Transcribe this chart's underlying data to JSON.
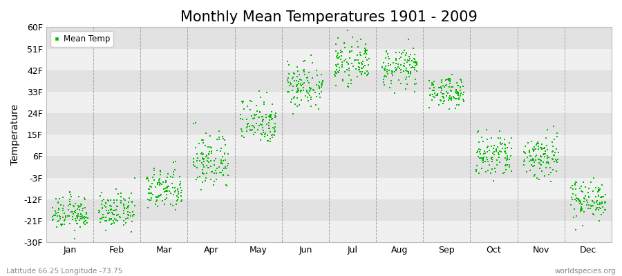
{
  "title": "Monthly Mean Temperatures 1901 - 2009",
  "ylabel": "Temperature",
  "legend_label": "Mean Temp",
  "subtitle_left": "Latitude 66.25 Longitude -73.75",
  "subtitle_right": "worldspecies.org",
  "ytick_labels": [
    "60F",
    "51F",
    "42F",
    "33F",
    "24F",
    "15F",
    "6F",
    "-3F",
    "-12F",
    "-21F",
    "-30F"
  ],
  "ytick_values": [
    60,
    51,
    42,
    33,
    24,
    15,
    6,
    -3,
    -12,
    -21,
    -30
  ],
  "ylim": [
    -30,
    60
  ],
  "month_names": [
    "Jan",
    "Feb",
    "Mar",
    "Apr",
    "May",
    "Jun",
    "Jul",
    "Aug",
    "Sep",
    "Oct",
    "Nov",
    "Dec"
  ],
  "month_centers": [
    0.5,
    1.5,
    2.5,
    3.5,
    4.5,
    5.5,
    6.5,
    7.5,
    8.5,
    9.5,
    10.5,
    11.5
  ],
  "month_means_f": [
    -18,
    -17,
    -8,
    4,
    21,
    36,
    45,
    43,
    33,
    6,
    6,
    -12
  ],
  "month_stds_f": [
    3.5,
    3.5,
    4.5,
    6,
    5,
    5,
    4,
    4,
    3,
    5,
    5,
    4
  ],
  "n_years": 109,
  "dot_color": "#00bb00",
  "dot_size": 2.5,
  "background_color": "#ebebeb",
  "band_colors": [
    "#e2e2e2",
    "#f0f0f0"
  ],
  "grid_color": "#888888",
  "title_fontsize": 15,
  "label_fontsize": 10,
  "tick_fontsize": 9
}
